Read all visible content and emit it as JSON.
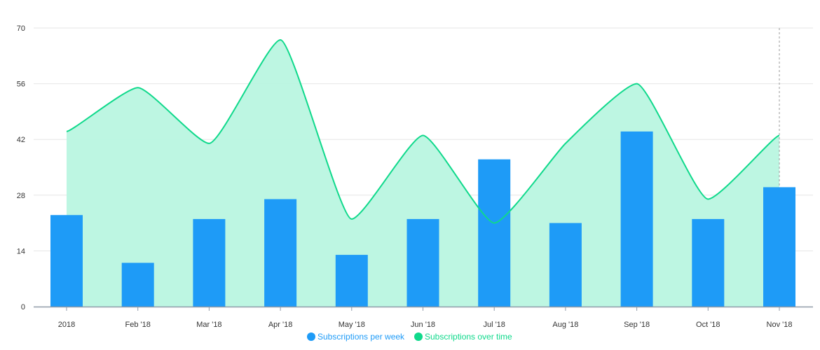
{
  "chart_data": {
    "type": "bar",
    "title": "",
    "xlabel": "",
    "ylabel": "",
    "categories": [
      "2018",
      "Feb '18",
      "Mar '18",
      "Apr '18",
      "May '18",
      "Jun '18",
      "Jul '18",
      "Aug '18",
      "Sep '18",
      "Oct '18",
      "Nov '18"
    ],
    "ylim": [
      0,
      70
    ],
    "yticks": [
      "0",
      "14",
      "28",
      "42",
      "56",
      "70"
    ],
    "grid": true,
    "legend_position": "bottom-center",
    "series": [
      {
        "name": "Subscriptions per week",
        "type": "bar",
        "color": "#1e9bf7",
        "values": [
          23,
          11,
          22,
          27,
          13,
          22,
          37,
          21,
          44,
          22,
          30
        ]
      },
      {
        "name": "Subscriptions over time",
        "type": "area",
        "color": "#0fd98b",
        "fill_color": "#b9f5e0",
        "values": [
          44,
          55,
          41,
          67,
          22,
          43,
          21,
          41,
          56,
          27,
          43
        ]
      }
    ],
    "crosshair_category": "Nov '18"
  }
}
